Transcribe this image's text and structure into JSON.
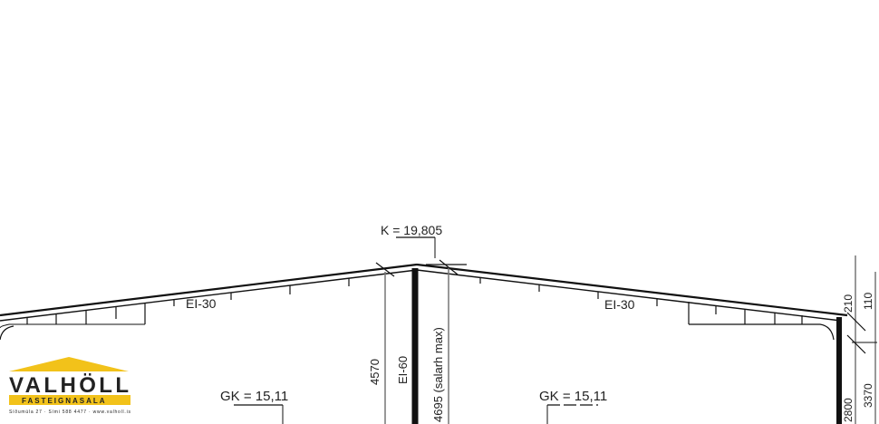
{
  "drawing": {
    "ridge_level": "K = 19,805",
    "roof_fire_rating_left": "EI-30",
    "roof_fire_rating_right": "EI-30",
    "wall_fire_rating": "EI-60",
    "dim_height_left": "4570",
    "dim_height_right": "4695 (salarh max)",
    "floor_level_left": "GK = 15,11",
    "floor_level_right": "GK = 15,11",
    "dim_edge_1": "210",
    "dim_edge_2": "110",
    "dim_edge_3": "3370",
    "dim_edge_4": "2800"
  },
  "logo": {
    "name": "VALHÖLL",
    "tagline": "FASTEIGNASALA",
    "contact": "Síðumúla 27 · Sími 588 4477 · www.valholl.is",
    "color_yellow": "#f2c21a"
  }
}
